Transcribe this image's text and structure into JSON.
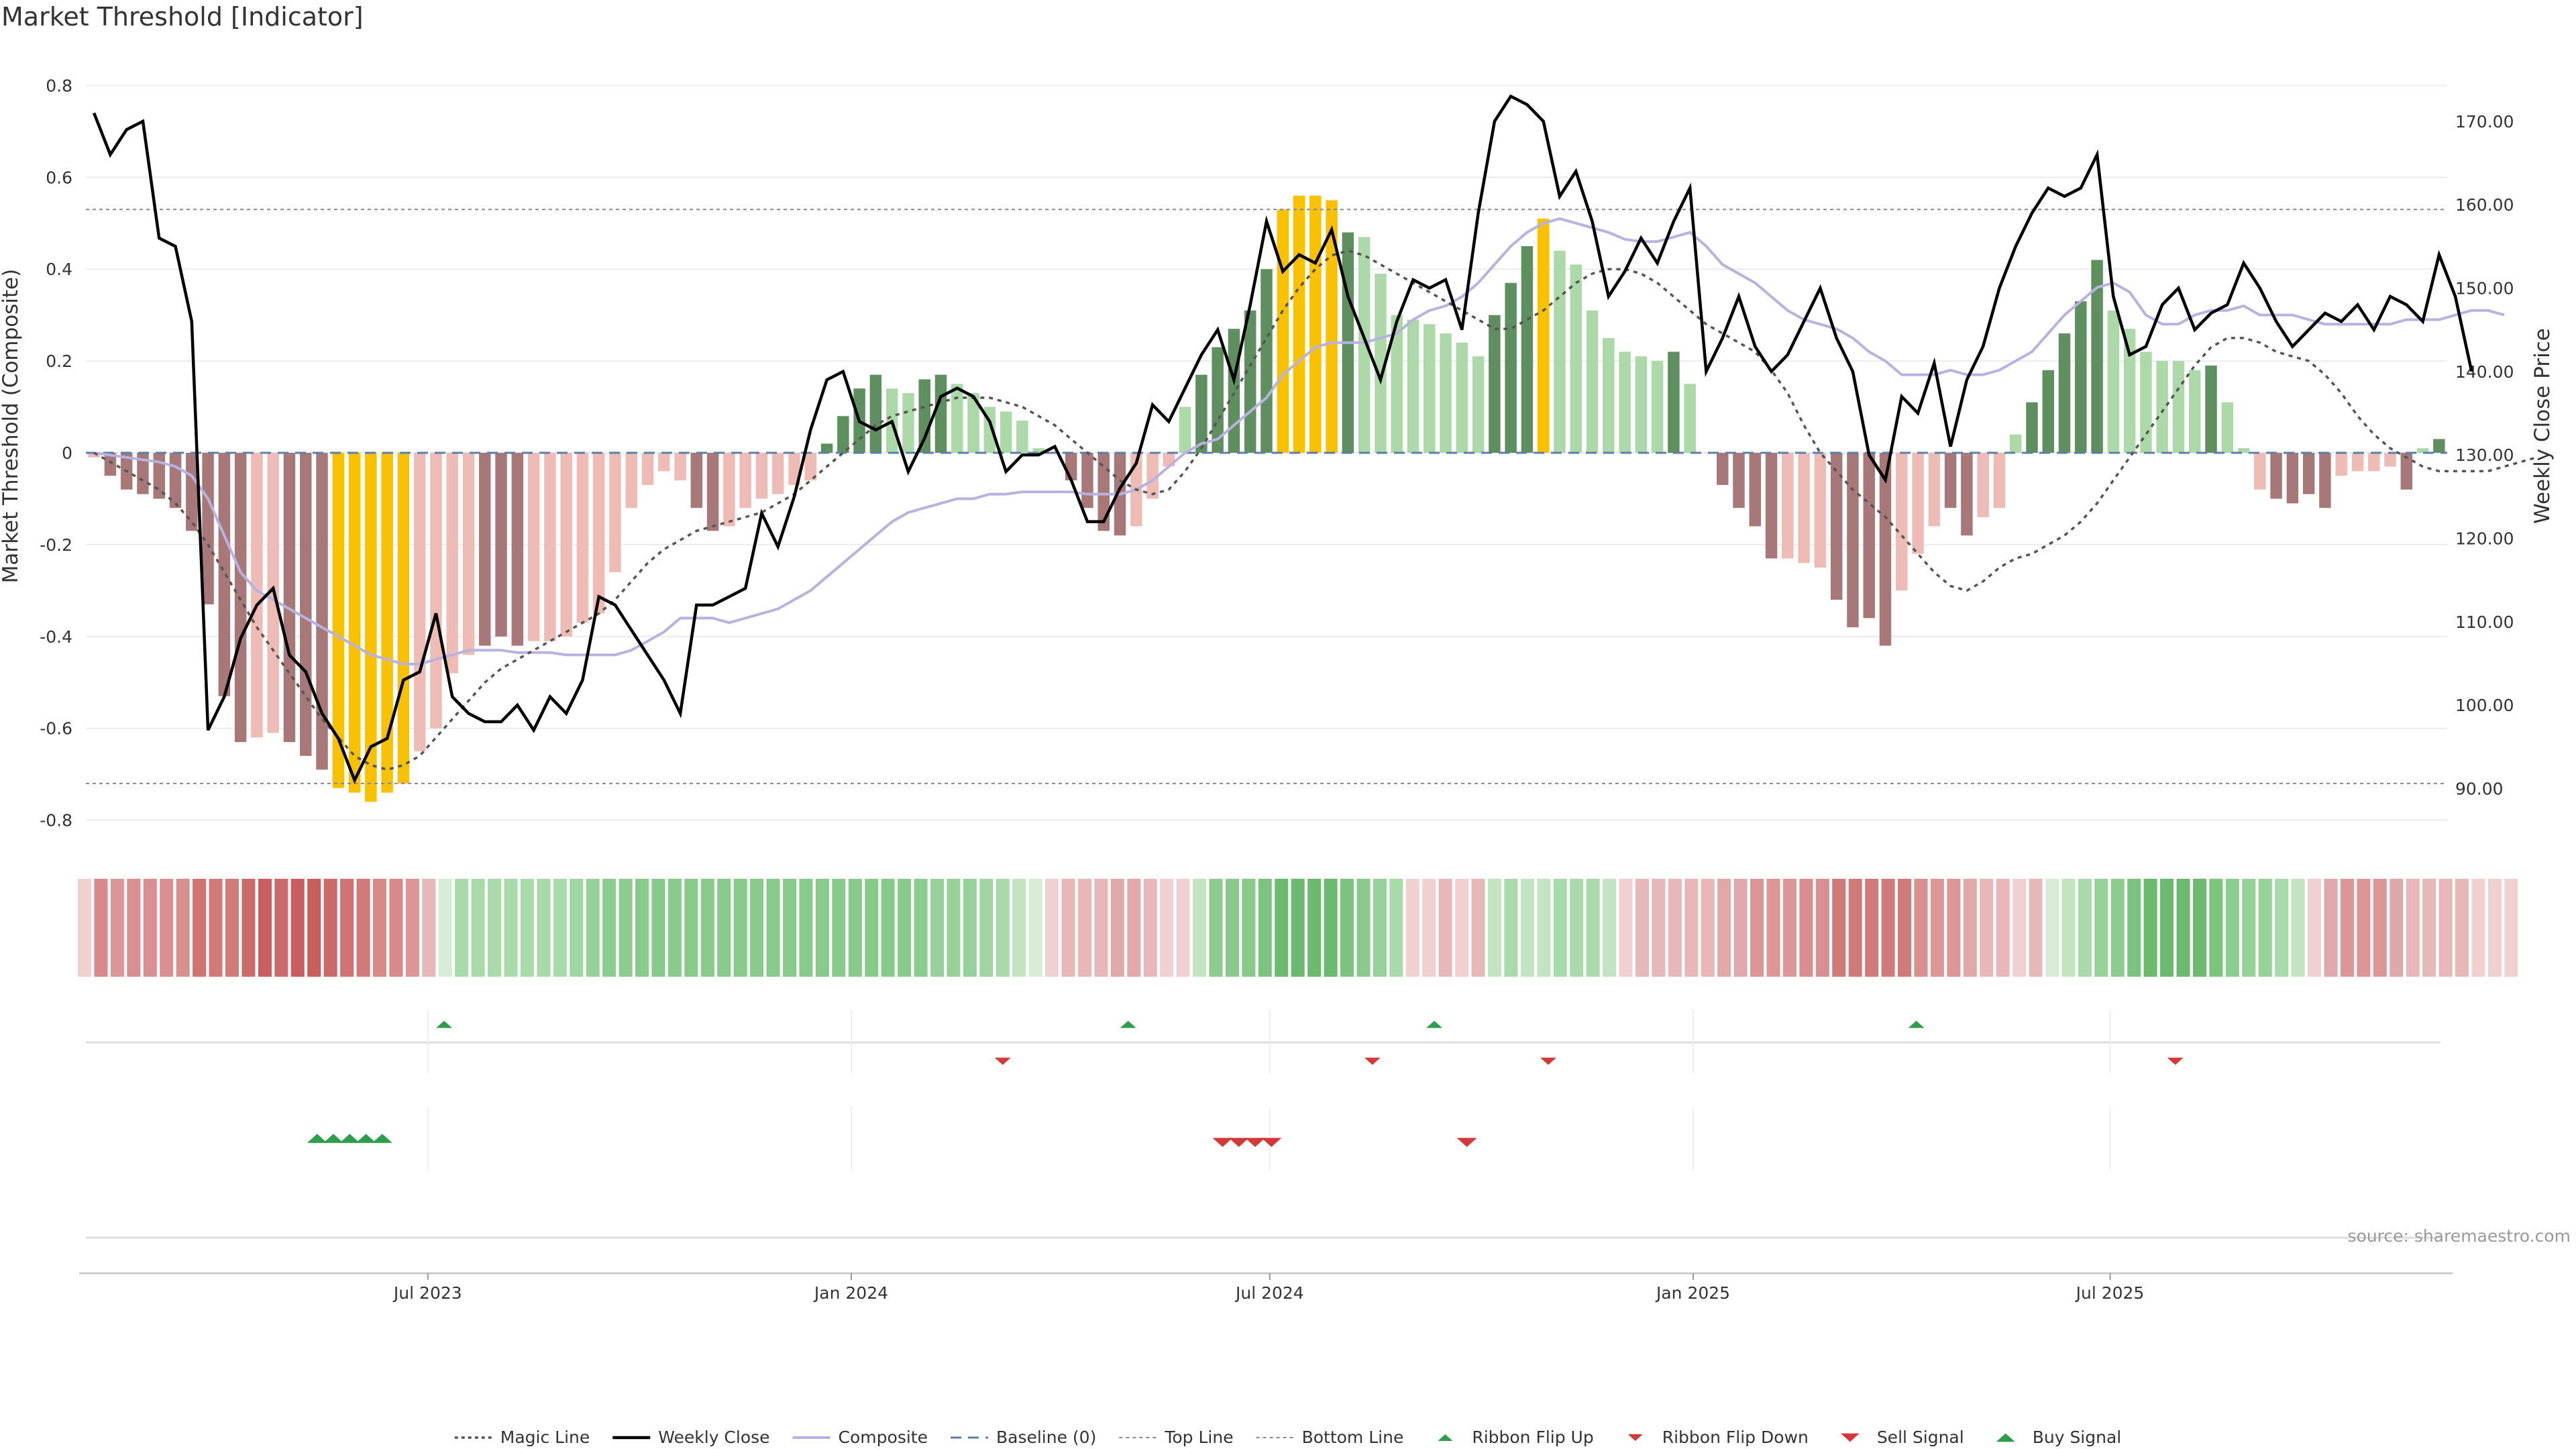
{
  "chart_data": {
    "type": "bar",
    "title": "Market Threshold [Indicator]",
    "ylabel": "Market Threshold (Composite)",
    "y2label": "Weekly Close Price",
    "source_note": "source: sharemaestro.com",
    "ylim": [
      -0.84,
      0.84
    ],
    "y2lim": [
      84.0,
      176.5
    ],
    "y_ticks": [
      "0.8",
      "0.6",
      "0.4",
      "0.2",
      "0",
      "-0.2",
      "-0.4",
      "-0.6",
      "-0.8"
    ],
    "y_tick_values": [
      0.8,
      0.6,
      0.4,
      0.2,
      0,
      -0.2,
      -0.4,
      -0.6,
      -0.8
    ],
    "y2_ticks": [
      "170.00",
      "160.00",
      "150.00",
      "140.00",
      "130.00",
      "120.00",
      "110.00",
      "100.00",
      "90.00"
    ],
    "y2_tick_values": [
      170,
      160,
      150,
      140,
      130,
      120,
      110,
      100,
      90
    ],
    "x_ticks": [
      "Jul 2023",
      "Jan 2024",
      "Jul 2024",
      "Jan 2025",
      "Jul 2025"
    ],
    "x_tick_weeks": [
      20.5,
      46.5,
      72.2,
      98.2,
      123.8
    ],
    "top_line": 0.53,
    "bottom_line": -0.72,
    "baseline": 0,
    "grid": true,
    "legend_position": "bottom-center",
    "legend": [
      {
        "label": "Magic Line",
        "kind": "dotted-line"
      },
      {
        "label": "Weekly Close",
        "kind": "solid-line"
      },
      {
        "label": "Composite",
        "kind": "lavender-line"
      },
      {
        "label": "Baseline (0)",
        "kind": "dashed-line"
      },
      {
        "label": "Top Line",
        "kind": "thin-dotted-line"
      },
      {
        "label": "Bottom Line",
        "kind": "thin-dotted-line"
      },
      {
        "label": "Ribbon Flip Up",
        "kind": "small-up-triangle"
      },
      {
        "label": "Ribbon Flip Down",
        "kind": "small-down-triangle"
      },
      {
        "label": "Sell Signal",
        "kind": "down-triangle"
      },
      {
        "label": "Buy Signal",
        "kind": "up-triangle"
      }
    ],
    "colors": {
      "strong_up": "#5e8f5e",
      "weak_up": "#acd9a8",
      "strong_down": "#a87878",
      "weak_down": "#eebcb4",
      "extreme": "#f9c100",
      "magic_line": "#555555",
      "weekly_close": "#000000",
      "composite": "#b8b2e0",
      "baseline": "#5b7fa8",
      "threshold_line": "#888888",
      "signal_up": "#2e9e4a",
      "signal_down": "#d63838"
    },
    "bar_values": [
      -0.01,
      -0.05,
      -0.08,
      -0.09,
      -0.1,
      -0.12,
      -0.17,
      -0.33,
      -0.53,
      -0.63,
      -0.62,
      -0.61,
      -0.63,
      -0.66,
      -0.69,
      -0.73,
      -0.74,
      -0.76,
      -0.74,
      -0.72,
      -0.65,
      -0.6,
      -0.48,
      -0.44,
      -0.42,
      -0.4,
      -0.42,
      -0.41,
      -0.41,
      -0.4,
      -0.37,
      -0.35,
      -0.26,
      -0.12,
      -0.07,
      -0.04,
      -0.06,
      -0.12,
      -0.17,
      -0.16,
      -0.12,
      -0.1,
      -0.09,
      -0.07,
      -0.06,
      0.02,
      0.08,
      0.14,
      0.17,
      0.14,
      0.13,
      0.16,
      0.17,
      0.15,
      0.13,
      0.1,
      0.09,
      0.07,
      0.01,
      0,
      -0.06,
      -0.12,
      -0.17,
      -0.18,
      -0.16,
      -0.1,
      -0.03,
      0.1,
      0.17,
      0.23,
      0.27,
      0.31,
      0.4,
      0.53,
      0.56,
      0.56,
      0.55,
      0.48,
      0.47,
      0.39,
      0.3,
      0.29,
      0.28,
      0.26,
      0.24,
      0.21,
      0.3,
      0.37,
      0.45,
      0.51,
      0.44,
      0.41,
      0.31,
      0.25,
      0.22,
      0.21,
      0.2,
      0.22,
      0.15,
      0,
      -0.07,
      -0.12,
      -0.16,
      -0.23,
      -0.23,
      -0.24,
      -0.25,
      -0.32,
      -0.38,
      -0.36,
      -0.42,
      -0.3,
      -0.22,
      -0.16,
      -0.12,
      -0.18,
      -0.14,
      -0.12,
      0.04,
      0.11,
      0.18,
      0.26,
      0.33,
      0.42,
      0.31,
      0.27,
      0.22,
      0.2,
      0.2,
      0.18,
      0.19,
      0.11,
      0.01,
      -0.08,
      -0.1,
      -0.11,
      -0.09,
      -0.12,
      -0.05,
      -0.04,
      -0.04,
      -0.03,
      -0.08,
      0.01,
      0.03
    ],
    "bar_categories": [
      "wd",
      "sd",
      "sd",
      "sd",
      "sd",
      "sd",
      "sd",
      "sd",
      "sd",
      "sd",
      "wd",
      "wd",
      "sd",
      "sd",
      "sd",
      "ex",
      "ex",
      "ex",
      "ex",
      "ex",
      "wd",
      "wd",
      "wd",
      "wd",
      "sd",
      "sd",
      "sd",
      "wd",
      "wd",
      "wd",
      "wd",
      "wd",
      "wd",
      "wd",
      "wd",
      "wd",
      "wd",
      "sd",
      "sd",
      "wd",
      "wd",
      "wd",
      "wd",
      "wd",
      "wd",
      "su",
      "su",
      "su",
      "su",
      "wu",
      "wu",
      "su",
      "su",
      "wu",
      "wu",
      "wu",
      "wu",
      "wu",
      "wu",
      "wd",
      "sd",
      "sd",
      "sd",
      "sd",
      "wd",
      "wd",
      "wd",
      "wu",
      "su",
      "su",
      "su",
      "su",
      "su",
      "ex",
      "ex",
      "ex",
      "ex",
      "su",
      "wu",
      "wu",
      "wu",
      "wu",
      "wu",
      "wu",
      "wu",
      "wu",
      "su",
      "su",
      "su",
      "ex",
      "wu",
      "wu",
      "wu",
      "wu",
      "wu",
      "wu",
      "wu",
      "su",
      "wu",
      "wd",
      "sd",
      "sd",
      "sd",
      "sd",
      "wd",
      "wd",
      "wd",
      "sd",
      "sd",
      "sd",
      "sd",
      "wd",
      "wd",
      "wd",
      "sd",
      "sd",
      "wd",
      "wd",
      "wu",
      "su",
      "su",
      "su",
      "su",
      "su",
      "wu",
      "wu",
      "wu",
      "wu",
      "wu",
      "wu",
      "su",
      "wu",
      "wu",
      "wd",
      "sd",
      "sd",
      "sd",
      "sd",
      "wd",
      "wd",
      "wd",
      "wd",
      "sd",
      "wu",
      "su"
    ],
    "weekly_close": [
      171,
      166,
      169,
      170,
      156,
      155,
      146,
      97,
      101,
      108,
      112,
      114,
      106,
      104,
      99,
      96,
      91,
      95,
      96,
      103,
      104,
      111,
      101,
      99,
      98,
      98,
      100,
      97,
      101,
      99,
      103,
      113,
      112,
      109,
      106,
      103,
      99,
      112,
      112,
      113,
      114,
      123,
      119,
      125,
      133,
      139,
      140,
      134,
      133,
      134,
      128,
      132,
      137,
      138,
      137,
      134,
      128,
      130,
      130,
      131,
      127,
      122,
      122,
      126,
      129,
      136,
      134,
      138,
      142,
      145,
      139,
      148,
      158,
      152,
      154,
      153,
      157,
      149,
      144,
      139,
      146,
      151,
      150,
      151,
      145,
      159,
      170,
      173,
      172,
      170,
      161,
      164,
      158,
      149,
      152,
      156,
      153,
      158,
      162,
      140,
      144,
      149,
      143,
      140,
      142,
      146,
      150,
      144,
      140,
      130,
      127,
      137,
      135,
      141,
      131,
      139,
      143,
      150,
      155,
      159,
      162,
      161,
      162,
      166,
      149,
      142,
      143,
      148,
      150,
      145,
      147,
      148,
      153,
      150,
      146,
      143,
      145,
      147,
      146,
      148,
      145,
      149,
      148,
      146,
      154,
      149,
      140
    ],
    "magic_line": [
      0,
      -0.02,
      -0.04,
      -0.06,
      -0.08,
      -0.11,
      -0.15,
      -0.2,
      -0.26,
      -0.32,
      -0.38,
      -0.43,
      -0.48,
      -0.53,
      -0.58,
      -0.62,
      -0.66,
      -0.68,
      -0.69,
      -0.68,
      -0.66,
      -0.62,
      -0.58,
      -0.54,
      -0.5,
      -0.47,
      -0.45,
      -0.43,
      -0.41,
      -0.39,
      -0.37,
      -0.35,
      -0.32,
      -0.28,
      -0.24,
      -0.21,
      -0.19,
      -0.17,
      -0.16,
      -0.15,
      -0.14,
      -0.13,
      -0.11,
      -0.09,
      -0.06,
      -0.03,
      0,
      0.03,
      0.06,
      0.08,
      0.09,
      0.1,
      0.11,
      0.12,
      0.12,
      0.12,
      0.11,
      0.1,
      0.08,
      0.06,
      0.03,
      0,
      -0.03,
      -0.06,
      -0.08,
      -0.09,
      -0.08,
      -0.04,
      0.01,
      0.07,
      0.13,
      0.19,
      0.25,
      0.31,
      0.36,
      0.4,
      0.43,
      0.44,
      0.43,
      0.41,
      0.39,
      0.37,
      0.35,
      0.33,
      0.31,
      0.29,
      0.27,
      0.27,
      0.29,
      0.31,
      0.34,
      0.37,
      0.39,
      0.4,
      0.4,
      0.39,
      0.37,
      0.34,
      0.31,
      0.28,
      0.26,
      0.24,
      0.22,
      0.18,
      0.13,
      0.06,
      0,
      -0.04,
      -0.08,
      -0.11,
      -0.14,
      -0.18,
      -0.22,
      -0.26,
      -0.29,
      -0.3,
      -0.28,
      -0.25,
      -0.23,
      -0.22,
      -0.2,
      -0.18,
      -0.15,
      -0.11,
      -0.06,
      -0.01,
      0.04,
      0.09,
      0.14,
      0.19,
      0.23,
      0.25,
      0.25,
      0.24,
      0.22,
      0.21,
      0.2,
      0.17,
      0.13,
      0.08,
      0.04,
      0.01,
      -0.01,
      -0.03,
      -0.04,
      -0.04,
      -0.04,
      -0.04,
      -0.03,
      -0.02,
      -0.01
    ],
    "composite": [
      0,
      -0.005,
      -0.01,
      -0.015,
      -0.02,
      -0.03,
      -0.05,
      -0.1,
      -0.18,
      -0.26,
      -0.3,
      -0.32,
      -0.34,
      -0.36,
      -0.38,
      -0.4,
      -0.42,
      -0.44,
      -0.45,
      -0.46,
      -0.46,
      -0.45,
      -0.44,
      -0.43,
      -0.43,
      -0.43,
      -0.435,
      -0.435,
      -0.435,
      -0.44,
      -0.44,
      -0.44,
      -0.44,
      -0.43,
      -0.41,
      -0.39,
      -0.36,
      -0.36,
      -0.36,
      -0.37,
      -0.36,
      -0.35,
      -0.34,
      -0.32,
      -0.3,
      -0.27,
      -0.24,
      -0.21,
      -0.18,
      -0.15,
      -0.13,
      -0.12,
      -0.11,
      -0.1,
      -0.1,
      -0.09,
      -0.09,
      -0.085,
      -0.085,
      -0.085,
      -0.085,
      -0.09,
      -0.09,
      -0.09,
      -0.08,
      -0.06,
      -0.03,
      0,
      0.02,
      0.03,
      0.06,
      0.09,
      0.12,
      0.17,
      0.2,
      0.23,
      0.24,
      0.24,
      0.24,
      0.25,
      0.26,
      0.29,
      0.31,
      0.32,
      0.34,
      0.37,
      0.41,
      0.45,
      0.48,
      0.5,
      0.51,
      0.5,
      0.49,
      0.48,
      0.465,
      0.46,
      0.46,
      0.47,
      0.48,
      0.45,
      0.41,
      0.39,
      0.37,
      0.34,
      0.31,
      0.29,
      0.28,
      0.27,
      0.25,
      0.22,
      0.2,
      0.17,
      0.17,
      0.17,
      0.18,
      0.17,
      0.17,
      0.18,
      0.2,
      0.22,
      0.26,
      0.3,
      0.33,
      0.36,
      0.37,
      0.35,
      0.3,
      0.28,
      0.28,
      0.3,
      0.31,
      0.31,
      0.32,
      0.3,
      0.3,
      0.3,
      0.29,
      0.28,
      0.28,
      0.28,
      0.28,
      0.28,
      0.29,
      0.29,
      0.29,
      0.3,
      0.31,
      0.31,
      0.3
    ],
    "ribbon_colors": [
      "#f0d0d0",
      "#d88a8a",
      "#dc9696",
      "#d98f8f",
      "#d98f8f",
      "#d98f8f",
      "#d98f8f",
      "#cf7373",
      "#d17a7a",
      "#d17a7a",
      "#cc6a6a",
      "#c85e5e",
      "#cc6a6a",
      "#c85e5e",
      "#c85e5e",
      "#cc6a6a",
      "#cf7373",
      "#d17a7a",
      "#d88a8a",
      "#d88a8a",
      "#dc9696",
      "#e8b8b8",
      "#d8ecd6",
      "#a8dba9",
      "#a8dba9",
      "#a8dba9",
      "#a8dba9",
      "#a8dba9",
      "#a8dba9",
      "#a8dba9",
      "#a0d6a2",
      "#96d198",
      "#8ccc8e",
      "#8ccc8e",
      "#88ca8a",
      "#88ca8a",
      "#88ca8a",
      "#88ca8a",
      "#88ca8a",
      "#88ca8a",
      "#88ca8a",
      "#88ca8a",
      "#88ca8a",
      "#88ca8a",
      "#88ca8a",
      "#88ca8a",
      "#88ca8a",
      "#88ca8a",
      "#88ca8a",
      "#88ca8a",
      "#88ca8a",
      "#8ccc8e",
      "#96d198",
      "#96d198",
      "#96d198",
      "#a0d6a2",
      "#a8dba9",
      "#c2e4c0",
      "#d8ecd6",
      "#f0d0d0",
      "#e8b8b8",
      "#e8b8b8",
      "#e8b8b8",
      "#e0a8a8",
      "#e0a8a8",
      "#e8b8b8",
      "#f0d0d0",
      "#f0d0d0",
      "#c2e4c0",
      "#8ccc8e",
      "#88ca8a",
      "#88ca8a",
      "#7cc47e",
      "#6bba6e",
      "#6bba6e",
      "#6bba6e",
      "#6bba6e",
      "#7cc47e",
      "#88ca8a",
      "#96d198",
      "#a8dba9",
      "#f0d0d0",
      "#f0d0d0",
      "#e8b8b8",
      "#f0d0d0",
      "#e8b8b8",
      "#c2e4c0",
      "#a8dba9",
      "#c2e4c0",
      "#c2e4c0",
      "#a8dba9",
      "#a8dba9",
      "#a8dba9",
      "#c2e4c0",
      "#f0d0d0",
      "#e8b8b8",
      "#e8b8b8",
      "#e8b8b8",
      "#e8b8b8",
      "#e8b8b8",
      "#e0a8a8",
      "#e0a8a8",
      "#dc9696",
      "#dc9696",
      "#dc9696",
      "#d98f8f",
      "#d98f8f",
      "#d17a7a",
      "#d17a7a",
      "#d17a7a",
      "#d17a7a",
      "#d17a7a",
      "#d98f8f",
      "#dc9696",
      "#dc9696",
      "#e0a8a8",
      "#e8b8b8",
      "#e8b8b8",
      "#f0d0d0",
      "#e8b8b8",
      "#d8ecd6",
      "#c2e4c0",
      "#a8dba9",
      "#96d198",
      "#8ccc8e",
      "#7cc47e",
      "#6bba6e",
      "#6bba6e",
      "#6bba6e",
      "#6bba6e",
      "#7cc47e",
      "#8ccc8e",
      "#96d198",
      "#96d198",
      "#a8dba9",
      "#c2e4c0",
      "#f0d0d0",
      "#e0a8a8",
      "#dc9696",
      "#dc9696",
      "#dc9696",
      "#e0a8a8",
      "#e8b8b8",
      "#e8b8b8",
      "#e8b8b8",
      "#e8b8b8",
      "#f0d0d0",
      "#f0d0d0",
      "#f0d0d0"
    ],
    "ribbon_flip_up_weeks": [
      21.5,
      63.5,
      82.3,
      111.9
    ],
    "ribbon_flip_down_weeks": [
      55.8,
      78.5,
      89.3,
      127.8
    ],
    "buy_signal_weeks": [
      13.7,
      14.7,
      15.7,
      16.7,
      17.7
    ],
    "sell_signal_weeks": [
      69.3,
      70.3,
      71.3,
      72.3,
      84.3
    ]
  }
}
